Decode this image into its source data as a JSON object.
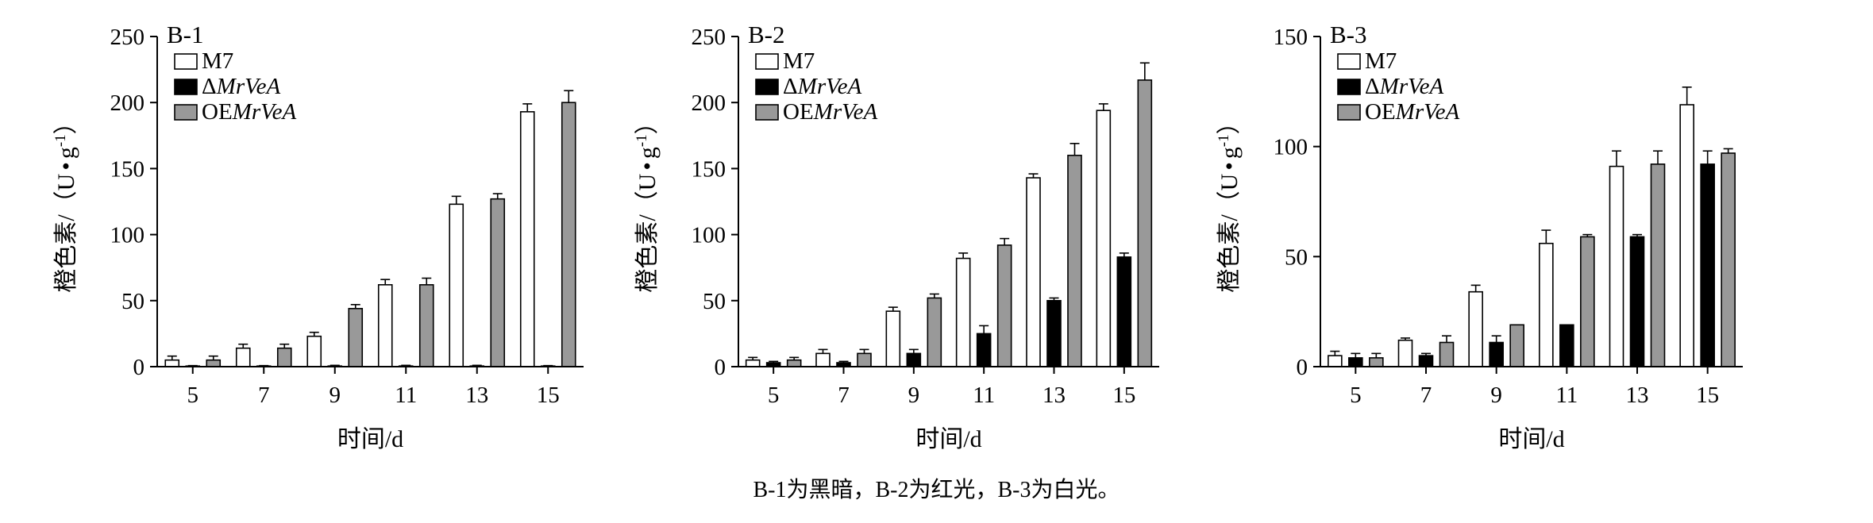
{
  "caption": "B-1为黑暗，B-2为红光，B-3为白光。",
  "chart_data": [
    {
      "type": "bar",
      "title": "B-1",
      "xlabel": "时间/d",
      "ylabel_main": "橙色素/（U",
      "ylabel_dot": "•",
      "ylabel_unit": "g",
      "ylabel_sup": "-1",
      "ylabel_end": "）",
      "categories": [
        "5",
        "7",
        "9",
        "11",
        "13",
        "15"
      ],
      "ylim": [
        0,
        250
      ],
      "yticks": [
        "0",
        "50",
        "100",
        "150",
        "200",
        "250"
      ],
      "legend": "top-left",
      "series": [
        {
          "name": "M7",
          "name_prefix": "",
          "name_italic": "M7",
          "fill": "#ffffff",
          "values": [
            5,
            14,
            23,
            62,
            123,
            193
          ],
          "errors": [
            3,
            3,
            3,
            4,
            6,
            6
          ]
        },
        {
          "name": "ΔMrVeA",
          "name_prefix": "Δ",
          "name_italic": "MrVeA",
          "fill": "#000000",
          "values": [
            0.3,
            0.3,
            0.5,
            0.5,
            0.5,
            0.3
          ],
          "errors": [
            0.5,
            0.5,
            0.5,
            0.5,
            0.5,
            0.5
          ]
        },
        {
          "name": "OEMrVeA",
          "name_prefix": "OE",
          "name_italic": "MrVeA",
          "fill": "#999999",
          "values": [
            5,
            14,
            44,
            62,
            127,
            200
          ],
          "errors": [
            3,
            3,
            3,
            5,
            4,
            9
          ]
        }
      ]
    },
    {
      "type": "bar",
      "title": "B-2",
      "xlabel": "时间/d",
      "ylabel_main": "橙色素/（U",
      "ylabel_dot": "•",
      "ylabel_unit": "g",
      "ylabel_sup": "-1",
      "ylabel_end": "）",
      "categories": [
        "5",
        "7",
        "9",
        "11",
        "13",
        "15"
      ],
      "ylim": [
        0,
        250
      ],
      "yticks": [
        "0",
        "50",
        "100",
        "150",
        "200",
        "250"
      ],
      "legend": "top-left",
      "series": [
        {
          "name": "M7",
          "name_prefix": "",
          "name_italic": "M7",
          "fill": "#ffffff",
          "values": [
            5,
            10,
            42,
            82,
            143,
            194
          ],
          "errors": [
            2,
            3,
            3,
            4,
            3,
            5
          ]
        },
        {
          "name": "ΔMrVeA",
          "name_prefix": "Δ",
          "name_italic": "MrVeA",
          "fill": "#000000",
          "values": [
            3,
            3,
            10,
            25,
            50,
            83
          ],
          "errors": [
            1,
            1,
            3,
            6,
            2,
            3
          ]
        },
        {
          "name": "OEMrVeA",
          "name_prefix": "OE",
          "name_italic": "MrVeA",
          "fill": "#999999",
          "values": [
            5,
            10,
            52,
            92,
            160,
            217
          ],
          "errors": [
            2,
            3,
            3,
            5,
            9,
            13
          ]
        }
      ]
    },
    {
      "type": "bar",
      "title": "B-3",
      "xlabel": "时间/d",
      "ylabel_main": "橙色素/（U",
      "ylabel_dot": "•",
      "ylabel_unit": "g",
      "ylabel_sup": "-1",
      "ylabel_end": "）",
      "categories": [
        "5",
        "7",
        "9",
        "11",
        "13",
        "15"
      ],
      "ylim": [
        0,
        150
      ],
      "yticks": [
        "0",
        "50",
        "100",
        "150"
      ],
      "legend": "top-left",
      "series": [
        {
          "name": "M7",
          "name_prefix": "",
          "name_italic": "M7",
          "fill": "#ffffff",
          "values": [
            5,
            12,
            34,
            56,
            91,
            119
          ],
          "errors": [
            2,
            1,
            3,
            6,
            7,
            8
          ]
        },
        {
          "name": "ΔMrVeA",
          "name_prefix": "Δ",
          "name_italic": "MrVeA",
          "fill": "#000000",
          "values": [
            4,
            5,
            11,
            19,
            59,
            92
          ],
          "errors": [
            2,
            1,
            3,
            0,
            1,
            6
          ]
        },
        {
          "name": "OEMrVeA",
          "name_prefix": "OE",
          "name_italic": "MrVeA",
          "fill": "#999999",
          "values": [
            4,
            11,
            19,
            59,
            92,
            97
          ],
          "errors": [
            2,
            3,
            0,
            1,
            6,
            2
          ]
        }
      ]
    }
  ]
}
